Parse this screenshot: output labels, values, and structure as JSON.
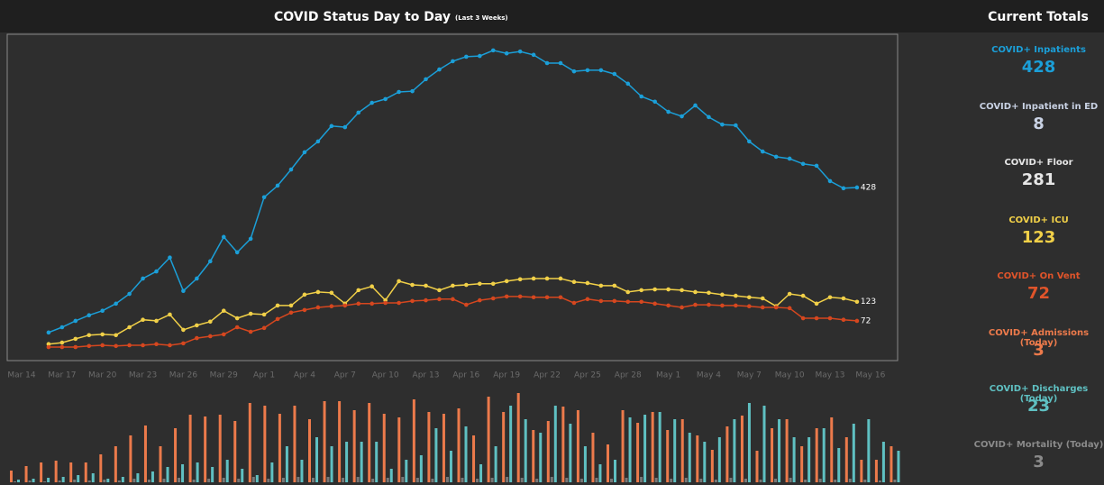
{
  "header": {
    "title": "COVID Status Day to Day",
    "subtitle": "(Last 3 Weeks)",
    "totals_title": "Current Totals"
  },
  "chart_data": [
    {
      "type": "line",
      "categories": [
        "Mar 14",
        null,
        null,
        "Mar 17",
        null,
        null,
        "Mar 20",
        null,
        null,
        "Mar 23",
        null,
        null,
        "Mar 26",
        null,
        null,
        "Mar 29",
        null,
        null,
        "Apr 1",
        null,
        null,
        "Apr 4",
        null,
        null,
        "Apr 7",
        null,
        null,
        "Apr 10",
        null,
        null,
        "Apr 13",
        null,
        null,
        "Apr 16",
        null,
        null,
        "Apr 19",
        null,
        null,
        "Apr 22",
        null,
        null,
        "Apr 25",
        null,
        null,
        "Apr 28",
        null,
        null,
        "May 1",
        null,
        null,
        "May 4",
        null,
        null,
        "May 7",
        null,
        null,
        "May 10",
        null,
        null,
        "May 13",
        null,
        null,
        "May 16"
      ],
      "series": [
        {
          "color": "#1b9fd8",
          "values": [
            null,
            null,
            41,
            55,
            72,
            87,
            99,
            118,
            144,
            185,
            204,
            241,
            152,
            185,
            231,
            296,
            255,
            291,
            402,
            433,
            476,
            522,
            551,
            592,
            589,
            628,
            654,
            664,
            683,
            685,
            717,
            743,
            765,
            777,
            779,
            794,
            786,
            791,
            782,
            760,
            760,
            738,
            741,
            741,
            731,
            705,
            671,
            657,
            630,
            618,
            647,
            616,
            596,
            594,
            551,
            524,
            510,
            505,
            491,
            486,
            445,
            426,
            428,
            null
          ]
        },
        {
          "color": "#f1d048",
          "values": [
            null,
            null,
            10,
            14,
            24,
            34,
            36,
            34,
            55,
            75,
            72,
            89,
            48,
            60,
            70,
            99,
            79,
            91,
            89,
            113,
            113,
            142,
            149,
            147,
            118,
            154,
            164,
            127,
            178,
            168,
            166,
            154,
            166,
            168,
            171,
            171,
            178,
            183,
            185,
            185,
            185,
            176,
            173,
            166,
            166,
            149,
            154,
            156,
            156,
            154,
            149,
            147,
            142,
            139,
            135,
            132,
            111,
            144,
            139,
            118,
            135,
            132,
            123,
            null
          ]
        },
        {
          "color": "#d6471f",
          "values": [
            null,
            null,
            2,
            2,
            2,
            5,
            7,
            5,
            7,
            7,
            10,
            7,
            12,
            26,
            31,
            36,
            55,
            43,
            53,
            77,
            94,
            101,
            108,
            111,
            113,
            118,
            118,
            120,
            120,
            125,
            127,
            130,
            130,
            115,
            127,
            132,
            137,
            137,
            135,
            135,
            135,
            120,
            130,
            125,
            125,
            123,
            123,
            118,
            113,
            108,
            115,
            115,
            113,
            113,
            111,
            108,
            108,
            106,
            79,
            79,
            79,
            75,
            72,
            null
          ]
        }
      ],
      "ylim": [
        -34,
        837
      ]
    },
    {
      "type": "bar",
      "series": [
        {
          "color": "#ec7a4b",
          "values": [
            13,
            18,
            22,
            24,
            22,
            22,
            31,
            40,
            52,
            63,
            40,
            60,
            75,
            73,
            75,
            68,
            88,
            85,
            76,
            85,
            70,
            90,
            90,
            80,
            88,
            76,
            72,
            92,
            78,
            76,
            82,
            52,
            95,
            78,
            99,
            58,
            68,
            84,
            80,
            55,
            42,
            80,
            66,
            78,
            58,
            70,
            52,
            36,
            62,
            74,
            35,
            60,
            70,
            40,
            60,
            72,
            50,
            25,
            25,
            40
          ]
        },
        {
          "color": "#5fc0c2",
          "values": [
            3,
            4,
            5,
            6,
            8,
            10,
            4,
            6,
            10,
            12,
            17,
            20,
            22,
            17,
            25,
            15,
            8,
            22,
            40,
            25,
            50,
            40,
            45,
            45,
            45,
            15,
            25,
            30,
            60,
            35,
            62,
            20,
            40,
            85,
            70,
            55,
            85,
            65,
            40,
            20,
            25,
            72,
            75,
            78,
            70,
            55,
            45,
            50,
            70,
            88,
            85,
            70,
            50,
            50,
            60,
            38,
            65,
            70,
            45,
            35
          ]
        },
        {
          "color": "#777777",
          "values": [
            1,
            2,
            1,
            2,
            3,
            2,
            3,
            2,
            4,
            3,
            4,
            5,
            3,
            4,
            5,
            4,
            6,
            4,
            5,
            6,
            5,
            6,
            5,
            6,
            4,
            5,
            6,
            5,
            4,
            6,
            5,
            4,
            5,
            6,
            5,
            4,
            6,
            5,
            4,
            5,
            4,
            5,
            6,
            5,
            4,
            5,
            4,
            3,
            5,
            4,
            3,
            4,
            5,
            3,
            4,
            3,
            4,
            3,
            2,
            3
          ]
        }
      ],
      "ylim": [
        0,
        100
      ]
    }
  ],
  "totals": [
    {
      "label": "COVID+ Inpatients",
      "value": 428,
      "color": "#1b9fd8"
    },
    {
      "label": "COVID+ Inpatient in ED",
      "value": 8,
      "color": "#c9d2e4"
    },
    {
      "label": "COVID+ Floor",
      "value": 281,
      "color": "#e6e6e6"
    },
    {
      "label": "COVID+ ICU",
      "value": 123,
      "color": "#f1d048"
    },
    {
      "label": "COVID+ On Vent",
      "value": 72,
      "color": "#e0542a"
    },
    {
      "label": "COVID+ Admissions (Today)",
      "value": 3,
      "color": "#ec7a4b"
    },
    {
      "label": "COVID+ Discharges (Today)",
      "value": 23,
      "color": "#5fc0c2"
    },
    {
      "label": "COVID+ Mortality (Today)",
      "value": 3,
      "color": "#8a8a8a"
    }
  ]
}
